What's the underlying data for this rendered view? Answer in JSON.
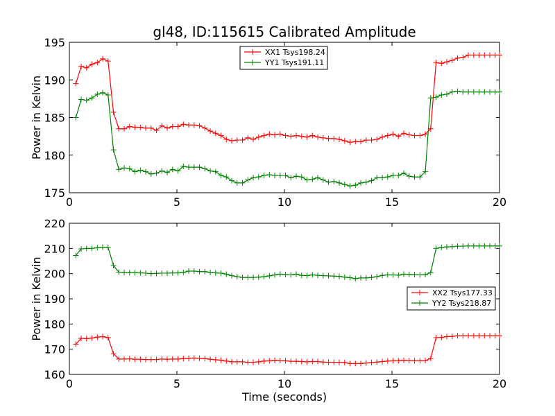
{
  "chart_data": [
    {
      "type": "line",
      "title": "gl48, ID:115615 Calibrated Amplitude",
      "xlabel": "",
      "ylabel": "Power in Kelvin",
      "xlim": [
        0,
        20
      ],
      "ylim": [
        175,
        195
      ],
      "xticks": [
        "0",
        "5",
        "10",
        "15",
        "20"
      ],
      "yticks": [
        "175",
        "180",
        "185",
        "190",
        "195"
      ],
      "legend_position": "upper-center",
      "series": [
        {
          "name": "XX1 Tsys198.24",
          "color": "#ff0000",
          "x": [
            0.3,
            0.55,
            0.8,
            1.05,
            1.3,
            1.55,
            1.8,
            2.05,
            2.3,
            2.55,
            2.8,
            3.05,
            3.3,
            3.55,
            3.8,
            4.05,
            4.3,
            4.55,
            4.8,
            5.05,
            5.3,
            5.55,
            5.8,
            6.05,
            6.3,
            6.55,
            6.8,
            7.05,
            7.3,
            7.55,
            7.8,
            8.05,
            8.3,
            8.55,
            8.8,
            9.05,
            9.3,
            9.55,
            9.8,
            10.05,
            10.3,
            10.55,
            10.8,
            11.05,
            11.3,
            11.55,
            11.8,
            12.05,
            12.3,
            12.55,
            12.8,
            13.05,
            13.3,
            13.55,
            13.8,
            14.05,
            14.3,
            14.55,
            14.8,
            15.05,
            15.3,
            15.55,
            15.8,
            16.05,
            16.3,
            16.55,
            16.8,
            17.05,
            17.3,
            17.55,
            17.8,
            18.05,
            18.3,
            18.55,
            18.8,
            19.05,
            19.3,
            19.55,
            19.8,
            20.0
          ],
          "values": [
            189.5,
            191.8,
            191.6,
            192.1,
            192.3,
            192.8,
            192.5,
            185.7,
            183.5,
            183.5,
            183.8,
            183.7,
            183.7,
            183.6,
            183.6,
            183.3,
            183.9,
            183.6,
            183.8,
            183.8,
            184.1,
            184.0,
            184.0,
            183.9,
            183.6,
            183.2,
            182.9,
            182.6,
            182.1,
            181.9,
            182.0,
            182.0,
            182.3,
            182.1,
            182.4,
            182.6,
            182.8,
            182.7,
            182.8,
            182.6,
            182.5,
            182.6,
            182.5,
            182.4,
            182.6,
            182.4,
            182.3,
            182.2,
            182.2,
            182.1,
            181.9,
            181.7,
            181.8,
            181.8,
            182.0,
            182.0,
            182.1,
            182.4,
            182.6,
            182.8,
            182.5,
            182.9,
            182.7,
            182.6,
            182.6,
            182.8,
            183.5,
            192.3,
            192.2,
            192.4,
            192.6,
            192.9,
            193.0,
            193.3,
            193.3,
            193.3,
            193.3,
            193.3,
            193.3,
            193.3
          ]
        },
        {
          "name": "YY1 Tsys191.11",
          "color": "#008000",
          "x": [
            0.3,
            0.55,
            0.8,
            1.05,
            1.3,
            1.55,
            1.8,
            2.05,
            2.3,
            2.55,
            2.8,
            3.05,
            3.3,
            3.55,
            3.8,
            4.05,
            4.3,
            4.55,
            4.8,
            5.05,
            5.3,
            5.55,
            5.8,
            6.05,
            6.3,
            6.55,
            6.8,
            7.05,
            7.3,
            7.55,
            7.8,
            8.05,
            8.3,
            8.55,
            8.8,
            9.05,
            9.3,
            9.55,
            9.8,
            10.05,
            10.3,
            10.55,
            10.8,
            11.05,
            11.3,
            11.55,
            11.8,
            12.05,
            12.3,
            12.55,
            12.8,
            13.05,
            13.3,
            13.55,
            13.8,
            14.05,
            14.3,
            14.55,
            14.8,
            15.05,
            15.3,
            15.55,
            15.8,
            16.05,
            16.3,
            16.55,
            16.8,
            17.05,
            17.3,
            17.55,
            17.8,
            18.05,
            18.3,
            18.55,
            18.8,
            19.05,
            19.3,
            19.55,
            19.8,
            20.0
          ],
          "values": [
            185.0,
            187.4,
            187.3,
            187.6,
            188.1,
            188.3,
            188.0,
            180.7,
            178.1,
            178.3,
            178.2,
            177.8,
            178.0,
            177.8,
            177.5,
            177.6,
            177.9,
            177.7,
            178.1,
            177.9,
            178.5,
            178.4,
            178.4,
            178.4,
            178.2,
            177.9,
            177.8,
            177.3,
            177.1,
            176.6,
            176.3,
            176.3,
            176.7,
            177.0,
            177.1,
            177.3,
            177.4,
            177.3,
            177.3,
            177.3,
            177.0,
            177.2,
            177.1,
            176.7,
            176.8,
            177.0,
            176.7,
            176.4,
            176.5,
            176.3,
            176.1,
            175.9,
            176.0,
            176.3,
            176.4,
            176.6,
            177.0,
            177.0,
            177.1,
            177.3,
            177.3,
            177.6,
            177.2,
            177.1,
            177.1,
            177.8,
            187.6,
            187.7,
            188.0,
            188.1,
            188.4,
            188.5,
            188.4,
            188.4,
            188.4,
            188.4,
            188.4,
            188.4,
            188.4,
            188.4
          ]
        }
      ]
    },
    {
      "type": "line",
      "title": "",
      "xlabel": "Time (seconds)",
      "ylabel": "Power in Kelvin",
      "xlim": [
        0,
        20
      ],
      "ylim": [
        160,
        220
      ],
      "xticks": [
        "0",
        "5",
        "10",
        "15",
        "20"
      ],
      "yticks": [
        "160",
        "170",
        "180",
        "190",
        "200",
        "210",
        "220"
      ],
      "legend_position": "center-right",
      "series": [
        {
          "name": "XX2 Tsys177.33",
          "color": "#ff0000",
          "x": [
            0.3,
            0.55,
            0.8,
            1.05,
            1.3,
            1.55,
            1.8,
            2.05,
            2.3,
            2.55,
            2.8,
            3.05,
            3.3,
            3.55,
            3.8,
            4.05,
            4.3,
            4.55,
            4.8,
            5.05,
            5.3,
            5.55,
            5.8,
            6.05,
            6.3,
            6.55,
            6.8,
            7.05,
            7.3,
            7.55,
            7.8,
            8.05,
            8.3,
            8.55,
            8.8,
            9.05,
            9.3,
            9.55,
            9.8,
            10.05,
            10.3,
            10.55,
            10.8,
            11.05,
            11.3,
            11.55,
            11.8,
            12.05,
            12.3,
            12.55,
            12.8,
            13.05,
            13.3,
            13.55,
            13.8,
            14.05,
            14.3,
            14.55,
            14.8,
            15.05,
            15.3,
            15.55,
            15.8,
            16.05,
            16.3,
            16.55,
            16.8,
            17.05,
            17.3,
            17.55,
            17.8,
            18.05,
            18.3,
            18.55,
            18.8,
            19.05,
            19.3,
            19.55,
            19.8,
            20.0
          ],
          "values": [
            172.0,
            174.3,
            174.2,
            174.4,
            174.8,
            175.0,
            174.6,
            168.2,
            166.1,
            166.1,
            166.2,
            166.0,
            166.0,
            165.9,
            165.9,
            165.9,
            166.1,
            166.0,
            166.1,
            166.1,
            166.3,
            166.4,
            166.5,
            166.4,
            166.3,
            166.0,
            165.8,
            165.6,
            165.3,
            165.0,
            165.0,
            165.0,
            164.8,
            164.8,
            165.0,
            165.3,
            165.4,
            165.6,
            165.5,
            165.4,
            165.2,
            165.2,
            165.1,
            165.0,
            165.1,
            165.1,
            164.9,
            164.8,
            164.8,
            164.8,
            164.7,
            164.3,
            164.3,
            164.3,
            164.5,
            164.7,
            164.9,
            165.1,
            165.3,
            165.4,
            165.4,
            165.6,
            165.5,
            165.4,
            165.4,
            165.5,
            166.3,
            174.6,
            174.7,
            175.0,
            175.1,
            175.3,
            175.3,
            175.3,
            175.3,
            175.3,
            175.3,
            175.3,
            175.3,
            175.3
          ]
        },
        {
          "name": "YY2 Tsys218.87",
          "color": "#008000",
          "x": [
            0.3,
            0.55,
            0.8,
            1.05,
            1.3,
            1.55,
            1.8,
            2.05,
            2.3,
            2.55,
            2.8,
            3.05,
            3.3,
            3.55,
            3.8,
            4.05,
            4.3,
            4.55,
            4.8,
            5.05,
            5.3,
            5.55,
            5.8,
            6.05,
            6.3,
            6.55,
            6.8,
            7.05,
            7.3,
            7.55,
            7.8,
            8.05,
            8.3,
            8.55,
            8.8,
            9.05,
            9.3,
            9.55,
            9.8,
            10.05,
            10.3,
            10.55,
            10.8,
            11.05,
            11.3,
            11.55,
            11.8,
            12.05,
            12.3,
            12.55,
            12.8,
            13.05,
            13.3,
            13.55,
            13.8,
            14.05,
            14.3,
            14.55,
            14.8,
            15.05,
            15.3,
            15.55,
            15.8,
            16.05,
            16.3,
            16.55,
            16.8,
            17.05,
            17.3,
            17.55,
            17.8,
            18.05,
            18.3,
            18.55,
            18.8,
            19.05,
            19.3,
            19.55,
            19.8,
            20.0
          ],
          "values": [
            207.2,
            209.8,
            210.0,
            210.0,
            210.3,
            210.5,
            210.4,
            203.2,
            200.6,
            200.5,
            200.4,
            200.4,
            200.3,
            200.2,
            200.0,
            200.1,
            200.2,
            200.2,
            200.3,
            200.3,
            200.5,
            201.0,
            201.0,
            200.8,
            200.8,
            200.5,
            200.3,
            200.2,
            199.8,
            199.2,
            198.8,
            198.5,
            198.5,
            198.5,
            198.6,
            198.8,
            199.1,
            199.5,
            199.8,
            199.6,
            199.5,
            199.8,
            199.3,
            199.2,
            199.5,
            199.3,
            199.2,
            199.1,
            199.0,
            198.9,
            198.6,
            198.4,
            198.0,
            198.3,
            198.3,
            198.5,
            198.8,
            199.3,
            199.5,
            199.5,
            199.4,
            199.8,
            199.7,
            199.6,
            199.5,
            199.6,
            200.4,
            210.0,
            210.4,
            210.6,
            210.7,
            210.9,
            210.9,
            211.0,
            211.0,
            211.0,
            211.0,
            211.0,
            211.0,
            211.0
          ]
        }
      ]
    }
  ]
}
